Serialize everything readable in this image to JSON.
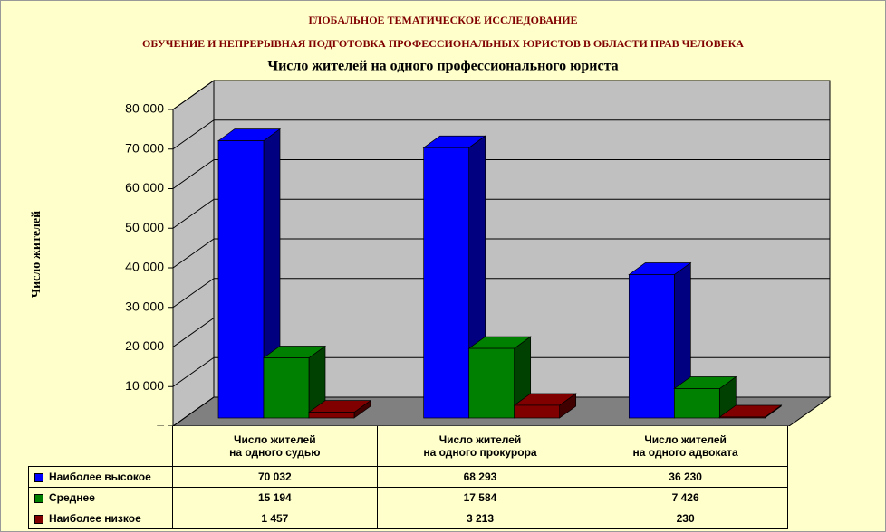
{
  "chart_data": {
    "type": "bar3d",
    "title": "ГЛОБАЛЬНОЕ ТЕМАТИЧЕСКОЕ ИССЛЕДОВАНИЕ",
    "subtitle": "ОБУЧЕНИЕ И НЕПРЕРЫВНАЯ ПОДГОТОВКА ПРОФЕССИОНАЛЬНЫХ ЮРИСТОВ В ОБЛАСТИ ПРАВ ЧЕЛОВЕКА",
    "chart_title": "Число жителей на одного профессионального юриста",
    "ylabel": "Число жителей",
    "categories": [
      "Число жителей\nна одного судью",
      "Число жителей\nна одного прокурора",
      "Число жителей\nна одного адвоката"
    ],
    "series": [
      {
        "name": "Наиболее высокое",
        "color": "#0000ff",
        "side": "#000080",
        "values": [
          70032,
          68293,
          36230
        ],
        "value_labels": [
          "70 032",
          "68 293",
          "36 230"
        ]
      },
      {
        "name": "Среднее",
        "color": "#008000",
        "side": "#004000",
        "values": [
          15194,
          17584,
          7426
        ],
        "value_labels": [
          "15 194",
          "17 584",
          "7 426"
        ]
      },
      {
        "name": "Наиболее низкое",
        "color": "#800000",
        "side": "#400000",
        "values": [
          1457,
          3213,
          230
        ],
        "value_labels": [
          "1 457",
          "3 213",
          "230"
        ]
      }
    ],
    "ylim": [
      0,
      80000
    ],
    "yticks": [
      {
        "value": 0,
        "label": "–"
      },
      {
        "value": 10000,
        "label": "10 000"
      },
      {
        "value": 20000,
        "label": "20 000"
      },
      {
        "value": 30000,
        "label": "30 000"
      },
      {
        "value": 40000,
        "label": "40 000"
      },
      {
        "value": 50000,
        "label": "50 000"
      },
      {
        "value": 60000,
        "label": "60 000"
      },
      {
        "value": 70000,
        "label": "70 000"
      },
      {
        "value": 80000,
        "label": "80 000"
      }
    ],
    "grid": true
  }
}
